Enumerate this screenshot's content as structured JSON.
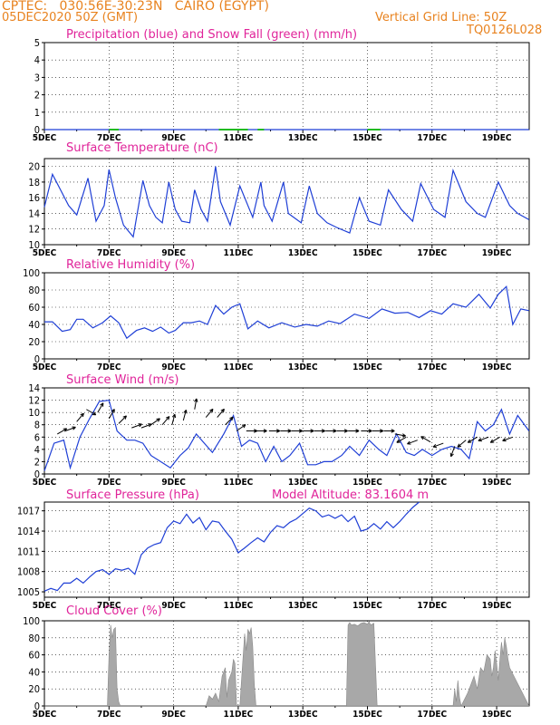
{
  "header": {
    "line1_left": "CPTEC:   030:56E-30:23N   CAIRO (EGYPT)",
    "line2_left": "05DEC2020 50Z (GMT)",
    "line2_right": "Vertical Grid Line: 50Z",
    "line3_right": "TQ0126L028"
  },
  "colors": {
    "header": "#e8821e",
    "title": "#e0249a",
    "line": "#1f3fd6",
    "snow": "#22bb22",
    "cloud": "#a8a8a8",
    "wind": "#000000"
  },
  "x_tick_labels": [
    "5DEC",
    "7DEC",
    "9DEC",
    "11DEC",
    "13DEC",
    "15DEC",
    "17DEC",
    "19DEC"
  ],
  "x_tick_positions_day": [
    0,
    2,
    4,
    6,
    8,
    10,
    12,
    14
  ],
  "chart_data": [
    {
      "id": "precip",
      "type": "line",
      "title": "Precipitation (blue) and Snow Fall (green) (mm/h)",
      "ylim": [
        0,
        5
      ],
      "yticks": [
        0,
        1,
        2,
        3,
        4,
        5
      ],
      "x_unit": "days from 05DEC 00Z",
      "series": [
        {
          "name": "Precipitation",
          "color": "#1f3fd6",
          "x": [
            0,
            15
          ],
          "y": [
            0,
            0
          ]
        },
        {
          "name": "Snow Fall",
          "color": "#22bb22",
          "segments": [
            [
              2.0,
              2.3
            ],
            [
              5.4,
              6.3
            ],
            [
              6.6,
              6.8
            ],
            [
              10.0,
              10.4
            ]
          ]
        }
      ]
    },
    {
      "id": "temp",
      "type": "line",
      "title": "Surface Temperature (nC)",
      "ylim": [
        10,
        21
      ],
      "yticks": [
        10,
        12,
        14,
        16,
        18,
        20
      ],
      "series": [
        {
          "name": "Surface Temperature",
          "color": "#1f3fd6",
          "x": [
            0,
            0.25,
            0.5,
            0.75,
            1,
            1.35,
            1.6,
            1.85,
            2,
            2.2,
            2.45,
            2.75,
            3.05,
            3.25,
            3.45,
            3.65,
            3.85,
            4.05,
            4.25,
            4.5,
            4.65,
            4.85,
            5.05,
            5.3,
            5.45,
            5.75,
            6.05,
            6.45,
            6.7,
            6.8,
            7.05,
            7.4,
            7.55,
            7.95,
            8.2,
            8.45,
            8.75,
            9.05,
            9.45,
            9.75,
            10.05,
            10.4,
            10.65,
            11.05,
            11.4,
            11.65,
            12.05,
            12.4,
            12.65,
            13.05,
            13.4,
            13.65,
            14.05,
            14.4,
            14.65,
            15
          ],
          "y": [
            14.8,
            19,
            17,
            15,
            13.8,
            18.5,
            13,
            15,
            19.6,
            16,
            12.5,
            11,
            18.2,
            15,
            13.5,
            12.8,
            18,
            14.5,
            13,
            12.8,
            17,
            14.5,
            13,
            20,
            15.5,
            12.5,
            17.5,
            13.5,
            18,
            15,
            13,
            18,
            14,
            12.8,
            17.5,
            14,
            12.8,
            12.2,
            11.5,
            16,
            13,
            12.5,
            17,
            14.5,
            13,
            17.8,
            14.5,
            13.5,
            19.5,
            15.5,
            14,
            13.5,
            18,
            15,
            14,
            13.2
          ]
        }
      ]
    },
    {
      "id": "rh",
      "type": "line",
      "title": "Relative Humidity (%)",
      "ylim": [
        0,
        100
      ],
      "yticks": [
        0,
        20,
        40,
        60,
        80,
        100
      ],
      "series": [
        {
          "name": "Relative Humidity",
          "color": "#1f3fd6",
          "x": [
            0,
            0.25,
            0.55,
            0.8,
            1,
            1.2,
            1.5,
            1.8,
            2.05,
            2.3,
            2.55,
            2.85,
            3.1,
            3.35,
            3.6,
            3.85,
            4.05,
            4.3,
            4.55,
            4.8,
            5.05,
            5.3,
            5.55,
            5.8,
            6.05,
            6.3,
            6.6,
            6.95,
            7.35,
            7.75,
            8.1,
            8.45,
            8.8,
            9.15,
            9.6,
            10.05,
            10.45,
            10.85,
            11.25,
            11.6,
            11.95,
            12.3,
            12.65,
            13.05,
            13.45,
            13.8,
            14.05,
            14.3,
            14.5,
            14.75,
            15
          ],
          "y": [
            43,
            43,
            32,
            34,
            46,
            46,
            36,
            42,
            50,
            42,
            24,
            33,
            36,
            32,
            37,
            30,
            33,
            42,
            42,
            44,
            40,
            62,
            52,
            60,
            64,
            35,
            44,
            36,
            42,
            37,
            40,
            38,
            44,
            41,
            52,
            47,
            58,
            53,
            54,
            48,
            56,
            52,
            64,
            60,
            75,
            59,
            75,
            84,
            40,
            58,
            56
          ]
        }
      ]
    },
    {
      "id": "wind",
      "type": "line",
      "title": "Surface Wind (m/s)",
      "ylim": [
        0,
        14
      ],
      "yticks": [
        0,
        2,
        4,
        6,
        8,
        10,
        12,
        14
      ],
      "series": [
        {
          "name": "Surface Wind Speed",
          "color": "#1f3fd6",
          "x": [
            0,
            0.3,
            0.6,
            0.8,
            1.1,
            1.4,
            1.7,
            2,
            2.25,
            2.55,
            2.8,
            3.05,
            3.3,
            3.6,
            3.9,
            4.2,
            4.45,
            4.7,
            4.95,
            5.2,
            5.55,
            5.85,
            6.1,
            6.35,
            6.6,
            6.85,
            7.1,
            7.35,
            7.6,
            7.9,
            8.15,
            8.4,
            8.65,
            8.9,
            9.2,
            9.45,
            9.75,
            10.05,
            10.35,
            10.6,
            10.9,
            11.2,
            11.45,
            11.7,
            12,
            12.3,
            12.6,
            12.9,
            13.15,
            13.4,
            13.65,
            13.9,
            14.15,
            14.4,
            14.65,
            15
          ],
          "y": [
            0.5,
            5,
            5.5,
            1,
            6,
            9,
            11.8,
            12,
            7,
            5.5,
            5.5,
            5,
            3,
            2,
            1,
            3,
            4.2,
            6.5,
            5,
            3.5,
            6.5,
            9.5,
            4.5,
            5.5,
            5,
            2,
            4.5,
            2,
            3,
            5,
            1.5,
            1.5,
            2,
            2,
            3,
            4.5,
            3,
            5.5,
            4,
            3,
            6.5,
            3.5,
            3,
            4,
            3,
            4,
            4.5,
            4,
            2.5,
            8.5,
            7,
            8,
            10.5,
            6.5,
            9.5,
            7
          ]
        }
      ],
      "wind_vectors": [
        {
          "x": 0.4,
          "y": 6.5,
          "dir": 60
        },
        {
          "x": 0.65,
          "y": 7,
          "dir": 70
        },
        {
          "x": 1.0,
          "y": 8.5,
          "dir": 40
        },
        {
          "x": 1.3,
          "y": 10.5,
          "dir": 120
        },
        {
          "x": 1.65,
          "y": 10,
          "dir": 30
        },
        {
          "x": 2.0,
          "y": 9,
          "dir": 30
        },
        {
          "x": 2.3,
          "y": 8.2,
          "dir": 45
        },
        {
          "x": 2.7,
          "y": 7.5,
          "dir": 70
        },
        {
          "x": 3.0,
          "y": 7.5,
          "dir": 70
        },
        {
          "x": 3.3,
          "y": 8,
          "dir": 55
        },
        {
          "x": 3.65,
          "y": 8,
          "dir": 40
        },
        {
          "x": 3.95,
          "y": 8,
          "dir": 15
        },
        {
          "x": 4.3,
          "y": 8.7,
          "dir": 15
        },
        {
          "x": 4.65,
          "y": 10.5,
          "dir": 10
        },
        {
          "x": 5.0,
          "y": 9.2,
          "dir": 40
        },
        {
          "x": 5.35,
          "y": 9.2,
          "dir": 40
        },
        {
          "x": 5.6,
          "y": 8,
          "dir": 45
        },
        {
          "x": 5.95,
          "y": 7,
          "dir": 55
        },
        {
          "x": 6.25,
          "y": 7,
          "dir": 90
        },
        {
          "x": 6.55,
          "y": 7,
          "dir": 90
        },
        {
          "x": 6.95,
          "y": 7,
          "dir": 90
        },
        {
          "x": 7.3,
          "y": 7,
          "dir": 90
        },
        {
          "x": 7.65,
          "y": 7,
          "dir": 90
        },
        {
          "x": 8.0,
          "y": 7,
          "dir": 90
        },
        {
          "x": 8.35,
          "y": 7,
          "dir": 90
        },
        {
          "x": 8.7,
          "y": 7,
          "dir": 90
        },
        {
          "x": 9.05,
          "y": 7,
          "dir": 90
        },
        {
          "x": 9.4,
          "y": 7,
          "dir": 90
        },
        {
          "x": 9.8,
          "y": 7,
          "dir": 90
        },
        {
          "x": 10.15,
          "y": 7,
          "dir": 90
        },
        {
          "x": 10.5,
          "y": 7,
          "dir": 90
        },
        {
          "x": 10.85,
          "y": 6.5,
          "dir": 100
        },
        {
          "x": 11.2,
          "y": 6,
          "dir": 240
        },
        {
          "x": 11.55,
          "y": 5.5,
          "dir": 250
        },
        {
          "x": 11.95,
          "y": 5.2,
          "dir": 300
        },
        {
          "x": 12.35,
          "y": 5,
          "dir": 250
        },
        {
          "x": 12.7,
          "y": 4.5,
          "dir": 200
        },
        {
          "x": 13.05,
          "y": 5.5,
          "dir": 230
        },
        {
          "x": 13.4,
          "y": 6,
          "dir": 240
        },
        {
          "x": 13.75,
          "y": 6,
          "dir": 250
        },
        {
          "x": 14.1,
          "y": 6,
          "dir": 240
        },
        {
          "x": 14.5,
          "y": 6,
          "dir": 250
        }
      ]
    },
    {
      "id": "pressure",
      "type": "line",
      "title": "Surface Pressure (hPa)",
      "annotation": "Model Altitude: 83.1604 m",
      "ylim": [
        1004.2,
        1018.3
      ],
      "yticks": [
        1005,
        1008,
        1011,
        1014,
        1017
      ],
      "series": [
        {
          "name": "Surface Pressure",
          "color": "#1f3fd6",
          "x": [
            0,
            0.2,
            0.4,
            0.6,
            0.8,
            1,
            1.2,
            1.4,
            1.6,
            1.8,
            2,
            2.2,
            2.4,
            2.6,
            2.8,
            3,
            3.2,
            3.4,
            3.6,
            3.8,
            4,
            4.2,
            4.4,
            4.6,
            4.8,
            5,
            5.2,
            5.4,
            5.6,
            5.8,
            6,
            6.2,
            6.4,
            6.6,
            6.8,
            7,
            7.2,
            7.4,
            7.6,
            7.8,
            8,
            8.2,
            8.4,
            8.6,
            8.8,
            9,
            9.2,
            9.4,
            9.6,
            9.8,
            10,
            10.2,
            10.4,
            10.6,
            10.8,
            11,
            11.2,
            11.4,
            11.6
          ],
          "y": [
            1005.1,
            1005.5,
            1005.2,
            1006.3,
            1006.3,
            1007,
            1006.3,
            1007.2,
            1008,
            1008.3,
            1007.6,
            1008.4,
            1008.2,
            1008.5,
            1007.6,
            1010.5,
            1011.5,
            1012,
            1012.3,
            1014.5,
            1015.5,
            1015.1,
            1016.5,
            1015.2,
            1016,
            1014.2,
            1015.5,
            1015.3,
            1014,
            1012.8,
            1010.8,
            1011.5,
            1012.3,
            1013,
            1012.4,
            1013.8,
            1014.8,
            1014.5,
            1015.3,
            1015.8,
            1016.6,
            1017.4,
            1017,
            1016.1,
            1016.4,
            1015.9,
            1016.4,
            1015.4,
            1016.2,
            1014,
            1014.3,
            1015.1,
            1014.3,
            1015.4,
            1014.5,
            1015.4,
            1016.5,
            1017.5,
            1018.3
          ]
        }
      ]
    },
    {
      "id": "cloud",
      "type": "area",
      "title": "Cloud Cover (%)",
      "ylim": [
        0,
        100
      ],
      "yticks": [
        0,
        20,
        40,
        60,
        80,
        100
      ],
      "series": [
        {
          "name": "Cloud Cover",
          "color": "#a8a8a8",
          "x": [
            0,
            1.95,
            2.0,
            2.05,
            2.1,
            2.15,
            2.2,
            2.25,
            2.3,
            2.35,
            5.0,
            5.1,
            5.2,
            5.3,
            5.4,
            5.5,
            5.6,
            5.65,
            5.7,
            5.8,
            5.85,
            5.9,
            5.95,
            6.0,
            6.05,
            6.1,
            6.2,
            6.25,
            6.3,
            6.35,
            6.4,
            6.45,
            6.5,
            6.55,
            6.6,
            6.65,
            6.7,
            6.75,
            6.8,
            9.35,
            9.4,
            9.45,
            9.5,
            9.6,
            9.7,
            9.8,
            9.9,
            10.0,
            10.05,
            10.1,
            10.2,
            10.3,
            12.65,
            12.7,
            12.75,
            12.8,
            12.85,
            12.9,
            13.1,
            13.2,
            13.3,
            13.4,
            13.5,
            13.6,
            13.7,
            13.8,
            13.85,
            13.9,
            13.95,
            14.0,
            14.05,
            14.1,
            14.15,
            14.2,
            14.25,
            14.3,
            14.35,
            14.4,
            15
          ],
          "y": [
            0,
            0,
            60,
            95,
            80,
            90,
            92,
            20,
            5,
            0,
            0,
            12,
            8,
            15,
            5,
            35,
            45,
            10,
            30,
            40,
            55,
            50,
            0,
            0,
            0,
            30,
            85,
            65,
            90,
            85,
            92,
            70,
            25,
            0,
            0,
            0,
            0,
            0,
            0,
            0,
            95,
            98,
            95,
            96,
            94,
            97,
            98,
            96,
            99,
            95,
            97,
            0,
            0,
            20,
            5,
            30,
            10,
            0,
            15,
            25,
            35,
            20,
            45,
            40,
            60,
            55,
            35,
            45,
            65,
            50,
            30,
            55,
            75,
            60,
            80,
            70,
            55,
            45,
            0
          ]
        }
      ]
    }
  ]
}
